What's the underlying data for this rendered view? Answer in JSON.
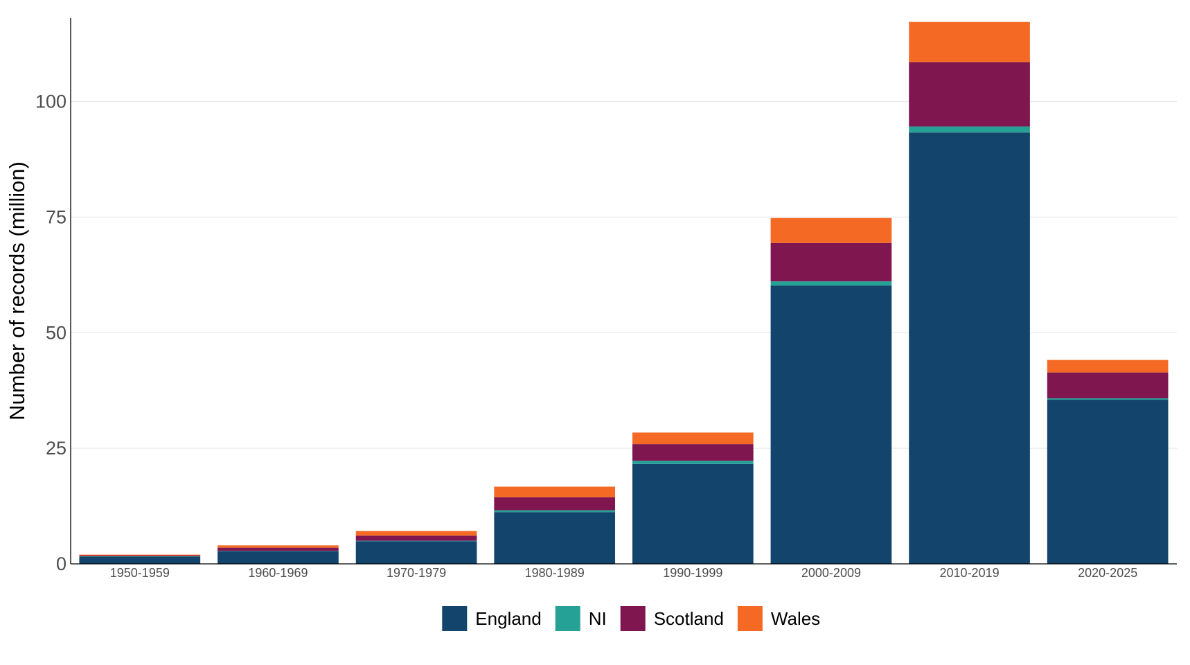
{
  "chart_data": {
    "type": "bar",
    "stacked": true,
    "title": "",
    "xlabel": "",
    "ylabel": "Number of records (million)",
    "ylim": [
      0,
      118
    ],
    "yticks": [
      0,
      25,
      50,
      75,
      100
    ],
    "grid": {
      "horizontal": true,
      "vertical": false
    },
    "legend_position": "bottom",
    "categories": [
      "1950-1959",
      "1960-1969",
      "1970-1979",
      "1980-1989",
      "1990-1999",
      "2000-2009",
      "2010-2019",
      "2020-2025"
    ],
    "series": [
      {
        "name": "England",
        "color": "#13446c",
        "values": [
          1.6,
          2.7,
          4.9,
          11.2,
          21.6,
          60.2,
          93.3,
          35.5
        ]
      },
      {
        "name": "NI",
        "color": "#26a196",
        "values": [
          0.05,
          0.1,
          0.1,
          0.4,
          0.7,
          0.9,
          1.3,
          0.3
        ]
      },
      {
        "name": "Scotland",
        "color": "#7f164f",
        "values": [
          0.15,
          0.7,
          1.1,
          2.8,
          3.6,
          8.3,
          13.9,
          5.6
        ]
      },
      {
        "name": "Wales",
        "color": "#f46a25",
        "values": [
          0.2,
          0.5,
          1.0,
          2.3,
          2.5,
          5.4,
          8.7,
          2.7
        ]
      }
    ]
  }
}
